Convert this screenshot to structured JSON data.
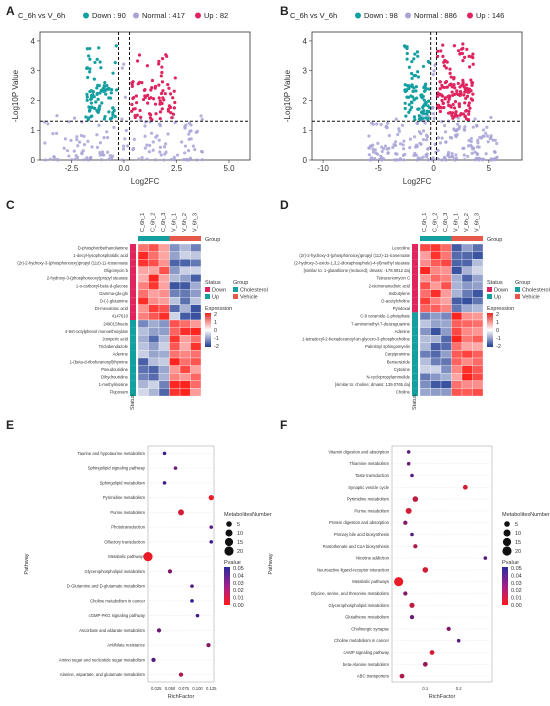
{
  "panels": {
    "A": {
      "label": "A",
      "legend_title": "C_6h vs V_6h",
      "down": "Down : 90",
      "normal": "Normal : 417",
      "up": "Up : 82",
      "xlabel": "Log2FC",
      "ylabel": "-Log10P Value",
      "xticks": [
        "-2.5",
        "0.0",
        "2.5",
        "5.0"
      ],
      "yticks": [
        "0",
        "1",
        "2",
        "3",
        "4"
      ]
    },
    "B": {
      "label": "B",
      "legend_title": "C_6h vs V_6h",
      "down": "Down : 98",
      "normal": "Normal : 886",
      "up": "Up : 146",
      "xlabel": "Log2FC",
      "ylabel": "-Log10P Value",
      "xticks": [
        "-10",
        "-5",
        "0",
        "5"
      ],
      "yticks": [
        "0",
        "1",
        "2",
        "3",
        "4"
      ]
    },
    "C": {
      "label": "C",
      "group_title": "Group",
      "samples": [
        "C_6h_1",
        "C_6h_2",
        "C_6h_3",
        "V_6h_1",
        "V_6h_2",
        "V_6h_3"
      ],
      "rows": [
        "D-phosphoribethanolamine",
        "1-decyl-lysophosphatidic acid",
        "(2r)-2-hydroxy-3-(phosphonooxy)propyl (11z)-11-icosenoate",
        "Oligomycin b",
        "2-hydroxy-3-(phosphonooxy)propyl stearate",
        "1-o-carboxyl-beta-d-glucose",
        "Gamma-glu-gln",
        "D-(-)-glutamine",
        "DI-mevalonic acid",
        "4147610",
        "24901Sheets",
        "4-tert-octylphenol monoethoxylate",
        "Juniperic acid",
        "Triclabendazole",
        "Adenine",
        "1-(beta-d-ribofuranosyl)thymine",
        "Pseudouridine",
        "Dihydrouridine",
        "1-methylinosine",
        "Flupoxam"
      ],
      "status_label": "Status",
      "legend_status_title": "Status",
      "legend_status": [
        "Down",
        "Up"
      ],
      "legend_group_title": "Group",
      "legend_group": [
        "Cholesterol",
        "Vehicle"
      ],
      "expression_title": "Expression",
      "expression_ticks": [
        "2",
        "1",
        "0",
        "-1",
        "-2"
      ]
    },
    "D": {
      "label": "D",
      "group_title": "Group",
      "samples": [
        "C_6h_1",
        "C_6h_2",
        "C_6h_3",
        "V_6h_1",
        "V_6h_2",
        "V_6h_3"
      ],
      "rows": [
        "Leucoline",
        "(2r)-2-hydroxy-3-(phosphonooxy)propyl (11z)-11-icosenoate",
        "(2-hydroxy-3-oxido-1,3,2-dioxaphosphole)-4-yl)methyl stearate",
        "[similar to: 1-glutathione (reduced); dmass: -178.0912 da]",
        "Tetracenomycin C",
        "2-isoinonanedioic acid",
        "Isobutylene",
        "O-acetylcholine",
        "Pyridoxal",
        "C-8 ceramide-1-phosphate",
        "7-aminomethyl-7-deazaguanine",
        "Adenine",
        "1-tetradecyl-2-hexadecanoyl-sn-glycero-3-phosphocholine",
        "Palmitoyl sphingomyelin",
        "Carpipramine",
        "Benserazide",
        "Cytosine",
        "N-cyclopropylammelide",
        "[similar to: choline; dmass: 139.0765 da]",
        "Choline"
      ],
      "status_label": "Status",
      "legend_status_title": "Status",
      "legend_status": [
        "Down",
        "Up"
      ],
      "legend_group_title": "Group",
      "legend_group": [
        "Cholesterol",
        "Vehicle"
      ],
      "expression_title": "Expression",
      "expression_ticks": [
        "2",
        "1",
        "0",
        "-1",
        "-2"
      ]
    },
    "E": {
      "label": "E",
      "ylabel": "Pathway",
      "xlabel": "RichFactor",
      "xticks": [
        "0.025",
        "0.050",
        "0.075",
        "0.100",
        "0.125"
      ],
      "size_title": "MetabolitesNumber",
      "size_ticks": [
        "5",
        "10",
        "15",
        "20"
      ],
      "p_title": "Pvalue",
      "p_ticks": [
        "0.05",
        "0.04",
        "0.03",
        "0.02",
        "0.01",
        "0.00"
      ]
    },
    "F": {
      "label": "F",
      "ylabel": "Pathway",
      "xlabel": "RichFactor",
      "xticks": [
        "0.1",
        "0.2"
      ],
      "size_title": "MetabolitesNumber",
      "size_ticks": [
        "5",
        "10",
        "15",
        "20"
      ],
      "p_title": "Pvalue",
      "p_ticks": [
        "0.05",
        "0.04",
        "0.03",
        "0.02",
        "0.01",
        "0.00"
      ]
    }
  },
  "colors": {
    "down": "#14a0a0",
    "normal": "#a7a3d6",
    "up": "#e0245e",
    "heat_high": "#e8231e",
    "heat_low": "#1f3c93",
    "cholesterol": "#14a0a0",
    "vehicle": "#e8584a"
  },
  "chart_data": [
    {
      "type": "scatter",
      "panel": "A",
      "xlim": [
        -4,
        6
      ],
      "ylim": [
        0,
        4.3
      ],
      "thresholds": {
        "x": [
          -0.263,
          0.263
        ],
        "y": 1.3
      }
    },
    {
      "type": "scatter",
      "panel": "B",
      "xlim": [
        -11,
        8
      ],
      "ylim": [
        0,
        4.3
      ],
      "thresholds": {
        "x": [
          -0.263,
          0.263
        ],
        "y": 1.3
      }
    },
    {
      "type": "heatmap",
      "panel": "C"
    },
    {
      "type": "heatmap",
      "panel": "D"
    },
    {
      "type": "scatter",
      "panel": "E",
      "xlim": [
        0.01,
        0.13
      ],
      "pathways": [
        "Alanine, aspartate, and glutamate metabolism",
        "Amino sugar and nucleotide sugar metabolism",
        "Antifolate resistance",
        "Ascorbate and aldarate metabolism",
        "cGMP-PKG signaling pathway",
        "Choline metabolism in cancer",
        "D-Glutamine and D-glutamate metabolism",
        "Glycerophospholipid metabolism",
        "Metabolic pathways",
        "Olfactory transduction",
        "Phototransduction",
        "Purine metabolism",
        "Pyrimidine metabolism",
        "Sphingolipid metabolism",
        "Sphingolipid signaling pathway",
        "Taurine and hypotaurine metabolism"
      ],
      "rich": [
        0.07,
        0.02,
        0.12,
        0.03,
        0.1,
        0.09,
        0.09,
        0.05,
        0.01,
        0.125,
        0.125,
        0.07,
        0.125,
        0.04,
        0.06,
        0.04
      ],
      "count": [
        2,
        2,
        2,
        2,
        1,
        1,
        1,
        2,
        20,
        1,
        1,
        6,
        4,
        1,
        1,
        1
      ],
      "p": [
        0.02,
        0.04,
        0.03,
        0.035,
        0.045,
        0.05,
        0.04,
        0.03,
        0.005,
        0.045,
        0.04,
        0.01,
        0.005,
        0.045,
        0.035,
        0.045
      ]
    },
    {
      "type": "scatter",
      "panel": "F",
      "xlim": [
        0,
        0.3
      ],
      "pathways": [
        "ABC transporters",
        "beta-Alanine metabolism",
        "cAMP signaling pathway",
        "Choline metabolism in cancer",
        "Cholinergic synapse",
        "Glutathione metabolism",
        "Glycerophospholipid metabolism",
        "Glycine, serine, and threonine metabolism",
        "Metabolic pathways",
        "Neuroactive ligand-receptor interaction",
        "Nicotine addiction",
        "Pantothenate and CoA biosynthesis",
        "Primary bile acid biosynthesis",
        "Protein digestion and absorption",
        "Purine metabolism",
        "Pyrimidine metabolism",
        "Synaptic vesicle cycle",
        "Taste transduction",
        "Thiamine metabolism",
        "Vitamin digestion and absorption"
      ],
      "rich": [
        0.03,
        0.1,
        0.12,
        0.2,
        0.17,
        0.06,
        0.06,
        0.04,
        0.02,
        0.1,
        0.28,
        0.07,
        0.06,
        0.04,
        0.05,
        0.07,
        0.22,
        0.06,
        0.05,
        0.05
      ],
      "count": [
        3,
        3,
        3,
        1,
        2,
        2,
        4,
        2,
        20,
        5,
        1,
        2,
        1,
        2,
        6,
        5,
        3,
        1,
        1,
        1
      ],
      "p": [
        0.02,
        0.025,
        0.01,
        0.04,
        0.03,
        0.035,
        0.015,
        0.03,
        0.005,
        0.01,
        0.04,
        0.02,
        0.04,
        0.03,
        0.01,
        0.015,
        0.01,
        0.04,
        0.035,
        0.04
      ]
    }
  ]
}
